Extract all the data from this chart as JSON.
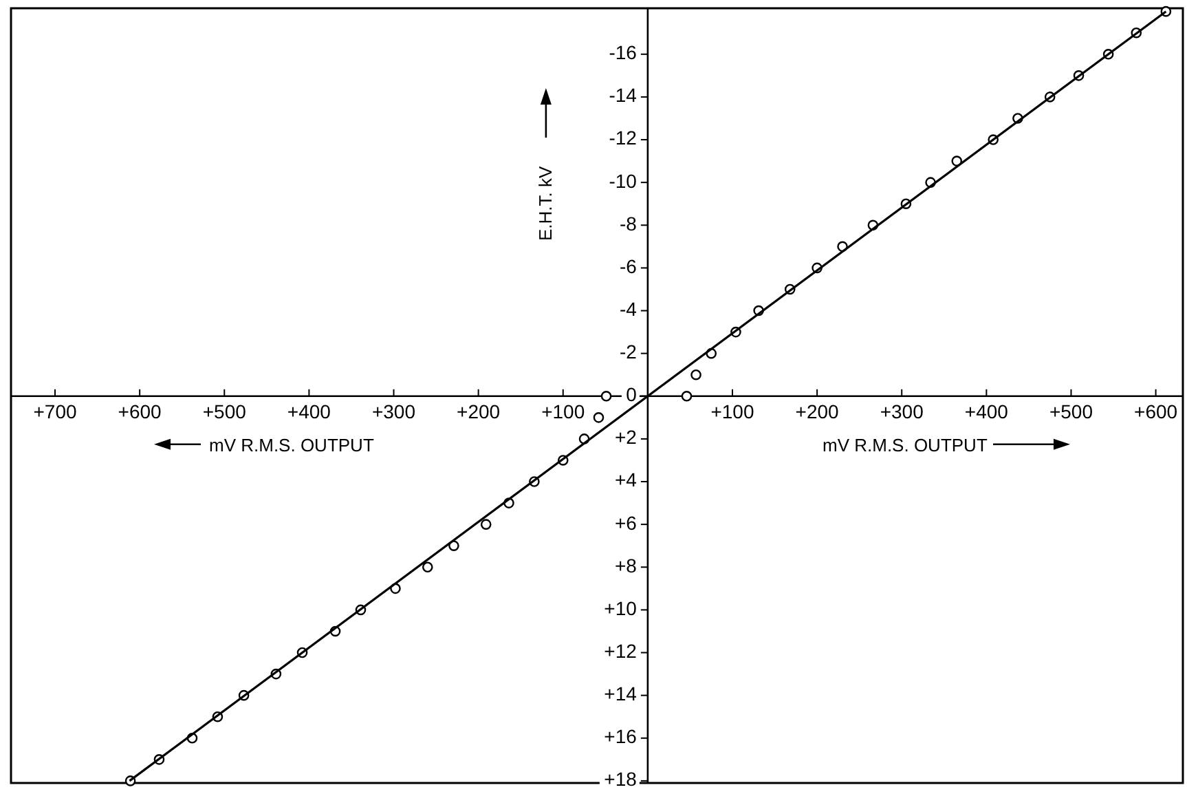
{
  "chart_data": {
    "type": "scatter",
    "xlabel": "mV R.M.S. OUTPUT",
    "ylabel": "E.H.T. kV",
    "annotations": [
      "mV R.M.S. OUTPUT"
    ],
    "xlim": [
      -752,
      632
    ],
    "ylim": [
      18.1,
      -18.15
    ],
    "xticks": [
      {
        "value": -700,
        "label": "+700"
      },
      {
        "value": -600,
        "label": "+600"
      },
      {
        "value": -500,
        "label": "+500"
      },
      {
        "value": -400,
        "label": "+400"
      },
      {
        "value": -300,
        "label": "+300"
      },
      {
        "value": -200,
        "label": "+200"
      },
      {
        "value": -100,
        "label": "+100"
      },
      {
        "value": 100,
        "label": "+100"
      },
      {
        "value": 200,
        "label": "+200"
      },
      {
        "value": 300,
        "label": "+300"
      },
      {
        "value": 400,
        "label": "+400"
      },
      {
        "value": 500,
        "label": "+500"
      },
      {
        "value": 600,
        "label": "+600"
      }
    ],
    "yticks": [
      -16,
      -14,
      -12,
      -10,
      -8,
      -6,
      -4,
      -2,
      0,
      {
        "value": 2,
        "label": "+2"
      },
      {
        "value": 4,
        "label": "+4"
      },
      {
        "value": 6,
        "label": "+6"
      },
      {
        "value": 8,
        "label": "+8"
      },
      {
        "value": 10,
        "label": "+10"
      },
      {
        "value": 12,
        "label": "+12"
      },
      {
        "value": 14,
        "label": "+14"
      },
      {
        "value": 16,
        "label": "+16"
      },
      {
        "value": 18,
        "label": "+18"
      }
    ],
    "grid": false,
    "marker": "circle",
    "line_style": "solid",
    "series": [
      {
        "color": "#000000",
        "x": [
          46,
          57,
          75,
          104,
          131,
          168,
          200,
          230,
          266,
          305,
          334,
          365,
          408,
          437,
          475,
          509,
          544,
          577,
          612,
          -49,
          -58,
          -75,
          -100,
          -134,
          -164,
          -191,
          -229,
          -260,
          -298,
          -339,
          -369,
          -408,
          -439,
          -477,
          -508,
          -538,
          -577,
          -611
        ],
        "values": [
          0,
          -1,
          -2,
          -3,
          -4,
          -5,
          -6,
          -7,
          -8,
          -9,
          -10,
          -11,
          -12,
          -13,
          -14,
          -15,
          -16,
          -17,
          -18,
          0,
          1,
          2,
          3,
          4,
          5,
          6,
          7,
          8,
          9,
          10,
          11,
          12,
          13,
          14,
          15,
          16,
          17,
          18
        ]
      },
      {
        "type": "line",
        "marker": "none",
        "color": "#000000",
        "x": [
          -612,
          612
        ],
        "values": [
          18,
          -18
        ]
      }
    ]
  }
}
